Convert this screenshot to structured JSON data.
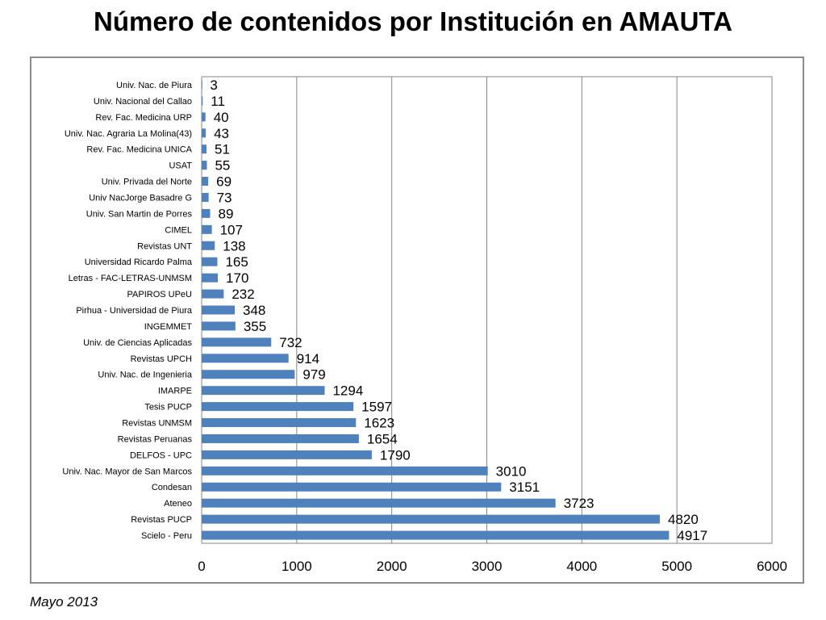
{
  "slide": {
    "title": "Número de contenidos por Institución en AMAUTA",
    "footnote": "Mayo 2013"
  },
  "chart_data": {
    "type": "bar",
    "orientation": "horizontal",
    "title": "",
    "xlabel": "",
    "ylabel": "",
    "xlim": [
      0,
      6000
    ],
    "xticks": [
      0,
      1000,
      2000,
      3000,
      4000,
      5000,
      6000
    ],
    "grid": "vertical",
    "legend": "none",
    "bar_color": "#4f81bd",
    "categories": [
      "Univ. Nac. de Piura",
      "Univ. Nacional del Callao",
      "Rev. Fac. Medicina URP",
      "Univ. Nac. Agraria La Molina(43)",
      "Rev. Fac. Medicina UNICA",
      "USAT",
      "Univ. Privada del Norte",
      "Univ NacJorge Basadre G",
      "Univ. San Martin de Porres",
      "CIMEL",
      "Revistas UNT",
      "Universidad Ricardo Palma",
      "Letras - FAC-LETRAS-UNMSM",
      "PAPIROS UPeU",
      "Pirhua - Universidad de Piura",
      "INGEMMET",
      "Univ. de Ciencias Aplicadas",
      "Revistas UPCH",
      "Univ. Nac. de Ingenieria",
      "IMARPE",
      "Tesis PUCP",
      "Revistas UNMSM",
      "Revistas Peruanas",
      "DELFOS - UPC",
      "Univ. Nac. Mayor de San Marcos",
      "Condesan",
      "Ateneo",
      "Revistas PUCP",
      "Scielo - Peru"
    ],
    "values": [
      3,
      11,
      40,
      43,
      51,
      55,
      69,
      73,
      89,
      107,
      138,
      165,
      170,
      232,
      348,
      355,
      732,
      914,
      979,
      1294,
      1597,
      1623,
      1654,
      1790,
      3010,
      3151,
      3723,
      4820,
      4917
    ],
    "data_labels": [
      "3",
      "11",
      "40",
      "43",
      "51",
      "55",
      "69",
      "73",
      "89",
      "107",
      "138",
      "165",
      "170",
      "232",
      "348",
      "355",
      "732",
      "914",
      "979",
      "1294",
      "1597",
      "1623",
      "1654",
      "1790",
      "3010",
      "3151",
      "3723",
      "4820",
      "4917"
    ]
  }
}
